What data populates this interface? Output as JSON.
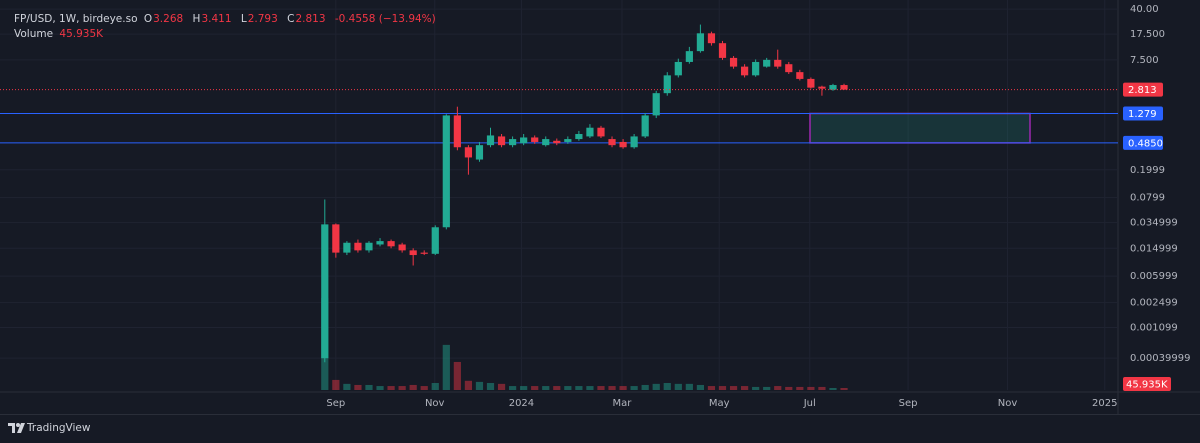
{
  "chart_data": {
    "type": "candlestick",
    "header": {
      "symbol": "FP/USD, 1W, birdeye.so",
      "ohlc_letters": [
        "O",
        "H",
        "L",
        "C"
      ],
      "change_label": "-0.4558 (−13.94%)"
    },
    "brand": "TradingView",
    "log": true,
    "grid": true,
    "up_color": "#22ab94",
    "down_color": "#f23645",
    "level_color": "#2962ff",
    "zone_color": "#9c27b0",
    "open": [
      0.0004,
      0.033,
      0.013,
      0.018,
      0.014,
      0.017,
      0.019,
      0.017,
      0.014,
      0.013,
      0.0125,
      0.03,
      1.2,
      0.42,
      0.28,
      0.45,
      0.6,
      0.45,
      0.48,
      0.58,
      0.45,
      0.52,
      0.5,
      0.55,
      0.6,
      0.8,
      0.55,
      0.5,
      0.42,
      0.6,
      1.2,
      2.5,
      4.5,
      7,
      10,
      18,
      13,
      8,
      6,
      4.5,
      6,
      7.5,
      6.5,
      5,
      4,
      3.1,
      2.8,
      3.268
    ],
    "high": [
      0.075,
      0.034,
      0.019,
      0.02,
      0.019,
      0.021,
      0.02,
      0.018,
      0.015,
      0.014,
      0.032,
      1.25,
      1.6,
      0.45,
      0.5,
      0.8,
      0.65,
      0.6,
      0.65,
      0.62,
      0.6,
      0.56,
      0.6,
      0.72,
      0.9,
      0.85,
      0.6,
      0.55,
      0.65,
      1.3,
      2.7,
      5,
      7.8,
      11.5,
      24,
      19,
      14,
      8.5,
      6.5,
      7.6,
      8,
      10.5,
      7,
      5.4,
      4.2,
      3.2,
      3.4,
      3.411
    ],
    "low": [
      0.00035,
      0.011,
      0.012,
      0.013,
      0.013,
      0.016,
      0.015,
      0.013,
      0.0085,
      0.012,
      0.012,
      0.028,
      0.38,
      0.17,
      0.26,
      0.42,
      0.42,
      0.42,
      0.45,
      0.47,
      0.43,
      0.45,
      0.47,
      0.52,
      0.57,
      0.57,
      0.42,
      0.4,
      0.4,
      0.57,
      1.1,
      2.3,
      4.2,
      6.6,
      9.5,
      12,
      7.5,
      5.6,
      4.2,
      4.3,
      5.8,
      5.6,
      4.7,
      3.8,
      2.9,
      2.3,
      2.7,
      2.793
    ],
    "close": [
      0.033,
      0.013,
      0.018,
      0.014,
      0.018,
      0.019,
      0.016,
      0.014,
      0.012,
      0.0125,
      0.03,
      1.2,
      0.42,
      0.3,
      0.45,
      0.62,
      0.45,
      0.55,
      0.58,
      0.5,
      0.55,
      0.48,
      0.55,
      0.65,
      0.8,
      0.6,
      0.45,
      0.42,
      0.6,
      1.2,
      2.5,
      4.5,
      7,
      10,
      18,
      13,
      8,
      6,
      4.5,
      7,
      7.5,
      6,
      5,
      4,
      3,
      2.9,
      3.269,
      2.813
    ],
    "volume": {
      "name": "Volume",
      "last_label": "45.935K",
      "values": [
        2100000,
        230000,
        140000,
        115000,
        115000,
        90000,
        90000,
        90000,
        115000,
        90000,
        160000,
        1030000,
        640000,
        210000,
        185000,
        160000,
        140000,
        90000,
        90000,
        90000,
        90000,
        90000,
        90000,
        90000,
        90000,
        90000,
        90000,
        90000,
        90000,
        115000,
        140000,
        160000,
        140000,
        140000,
        115000,
        90000,
        90000,
        90000,
        90000,
        70000,
        70000,
        90000,
        70000,
        70000,
        70000,
        70000,
        46000,
        45935
      ]
    },
    "levels": [
      1.279,
      {
        "value": 0.485,
        "label": "0.4850"
      }
    ],
    "ylim": [
      0.00014,
      54
    ],
    "yticks": [
      {
        "value": 40,
        "label": "40.00"
      },
      {
        "value": 17.5,
        "label": "17.500"
      },
      {
        "value": 7.5,
        "label": "7.500"
      },
      0.1999,
      0.0799,
      0.034999,
      0.014999,
      0.005999,
      0.002499,
      0.001099,
      0.00039999
    ],
    "xlim": [
      -29.4,
      71.8
    ],
    "xticks": [
      {
        "value": 1.0,
        "label": "Sep"
      },
      {
        "value": 9.95,
        "label": "Nov"
      },
      {
        "value": 17.8,
        "label": "2024"
      },
      {
        "value": 26.9,
        "label": "Mar"
      },
      {
        "value": 35.7,
        "label": "May"
      },
      {
        "value": 43.9,
        "label": "Jul"
      },
      {
        "value": 52.8,
        "label": "Sep"
      },
      {
        "value": 61.8,
        "label": "Nov"
      },
      {
        "value": 70.6,
        "label": "2025"
      }
    ]
  }
}
